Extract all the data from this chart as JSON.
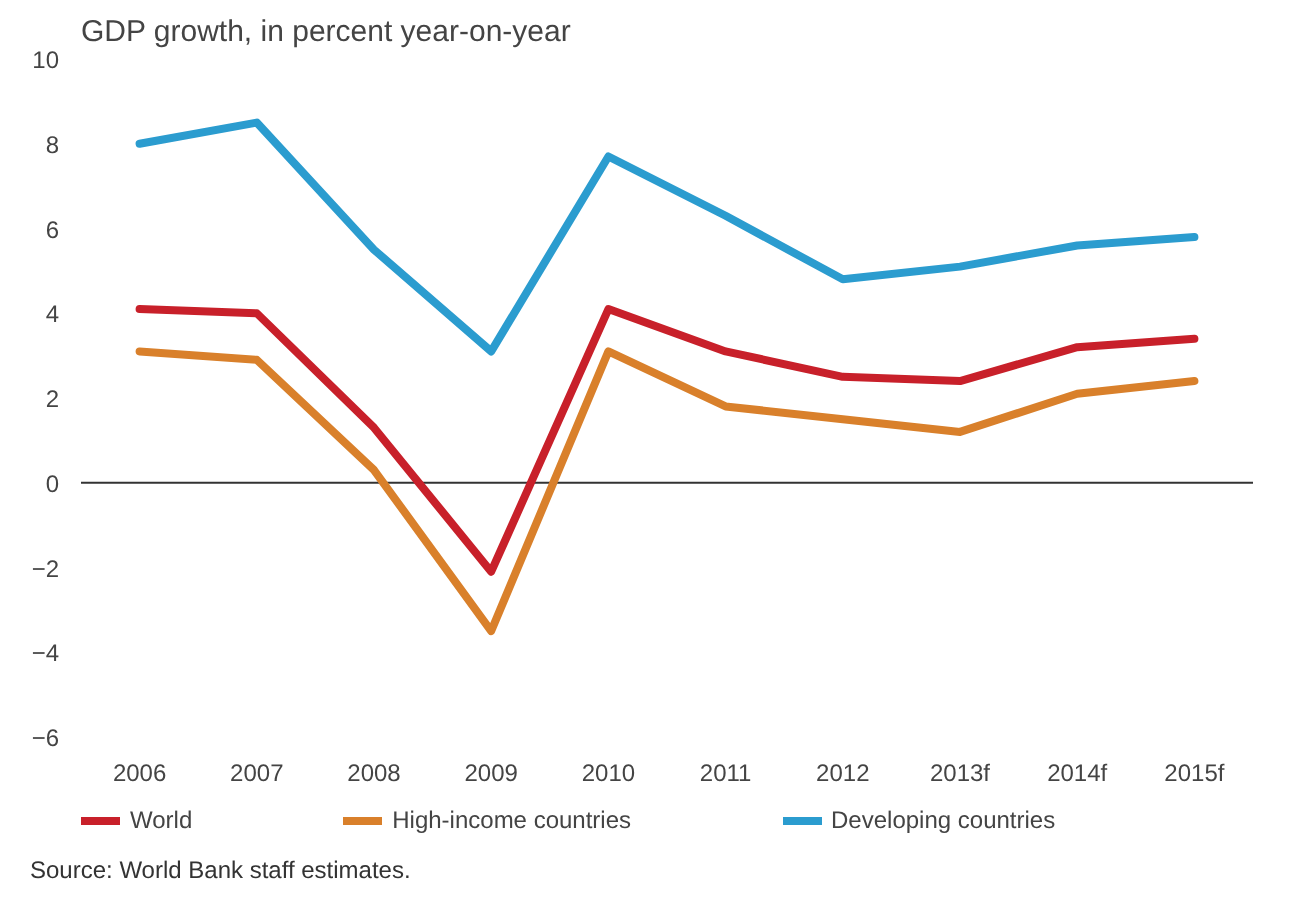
{
  "chart_data": {
    "type": "line",
    "title": "GDP growth, in percent year-on-year",
    "categories": [
      "2006",
      "2007",
      "2008",
      "2009",
      "2010",
      "2011",
      "2012",
      "2013f",
      "2014f",
      "2015f"
    ],
    "series": [
      {
        "name": "World",
        "color": "#c8202a",
        "values": [
          4.1,
          4.0,
          1.3,
          -2.1,
          4.1,
          3.1,
          2.5,
          2.4,
          3.2,
          3.4
        ]
      },
      {
        "name": "High-income countries",
        "color": "#d9802b",
        "values": [
          3.1,
          2.9,
          0.3,
          -3.5,
          3.1,
          1.8,
          1.5,
          1.2,
          2.1,
          2.4
        ]
      },
      {
        "name": "Developing countries",
        "color": "#2b9ccf",
        "values": [
          8.0,
          8.5,
          5.5,
          3.1,
          7.7,
          6.3,
          4.8,
          5.1,
          5.6,
          5.8
        ]
      }
    ],
    "ylim": [
      -6,
      10
    ],
    "yticks": [
      -6,
      -4,
      -2,
      0,
      2,
      4,
      6,
      8,
      10
    ],
    "ref_lines": [
      {
        "axis": "y",
        "value": 0,
        "color": "#333333"
      }
    ],
    "grid": false,
    "legend": "bottom",
    "marker": "none",
    "line_style": "solid",
    "annotations": [
      "Source: World Bank staff estimates."
    ]
  }
}
